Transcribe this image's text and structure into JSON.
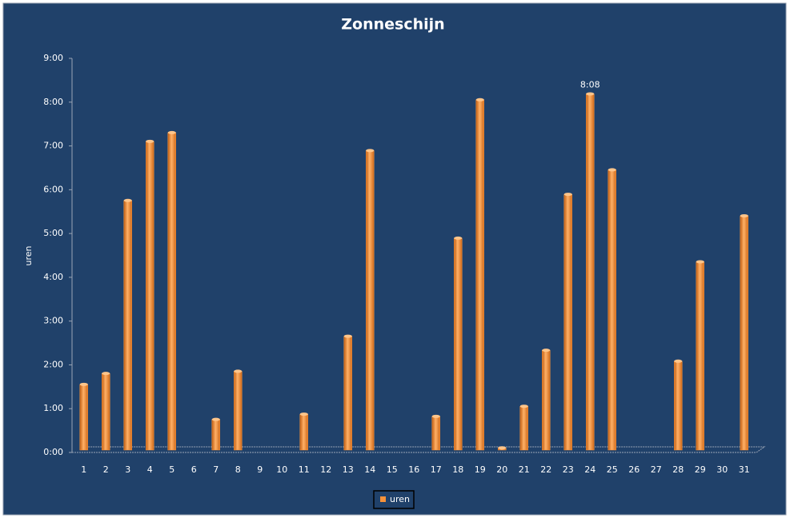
{
  "chart_data": {
    "type": "bar",
    "title": "Zonneschijn",
    "y_label": "uren",
    "categories": [
      "1",
      "2",
      "3",
      "4",
      "5",
      "6",
      "7",
      "8",
      "9",
      "10",
      "11",
      "12",
      "13",
      "14",
      "15",
      "16",
      "17",
      "18",
      "19",
      "20",
      "21",
      "22",
      "23",
      "24",
      "25",
      "26",
      "27",
      "28",
      "29",
      "30",
      "31"
    ],
    "series": [
      {
        "name": "uren",
        "color": "#f7923a",
        "values": [
          1.5,
          1.75,
          5.7,
          7.05,
          7.25,
          null,
          0.7,
          1.8,
          null,
          null,
          0.82,
          null,
          2.6,
          6.84,
          null,
          null,
          0.77,
          4.84,
          8.0,
          0.05,
          1.0,
          2.28,
          5.84,
          8.1333,
          6.4,
          null,
          null,
          2.03,
          4.3,
          null,
          5.35
        ],
        "value_labels": [
          null,
          null,
          null,
          null,
          null,
          null,
          null,
          null,
          null,
          null,
          null,
          null,
          null,
          null,
          null,
          null,
          null,
          null,
          null,
          null,
          null,
          null,
          null,
          "8:08",
          null,
          null,
          null,
          null,
          null,
          null,
          null
        ]
      }
    ],
    "ylim": [
      0,
      9
    ],
    "yticks": [
      {
        "value": 0,
        "label": "0:00"
      },
      {
        "value": 1,
        "label": "1:00"
      },
      {
        "value": 2,
        "label": "2:00"
      },
      {
        "value": 3,
        "label": "3:00"
      },
      {
        "value": 4,
        "label": "4:00"
      },
      {
        "value": 5,
        "label": "5:00"
      },
      {
        "value": 6,
        "label": "6:00"
      },
      {
        "value": 7,
        "label": "7:00"
      },
      {
        "value": 8,
        "label": "8:00"
      },
      {
        "value": 9,
        "label": "9:00"
      }
    ],
    "grid": false,
    "legend": "bottom"
  }
}
